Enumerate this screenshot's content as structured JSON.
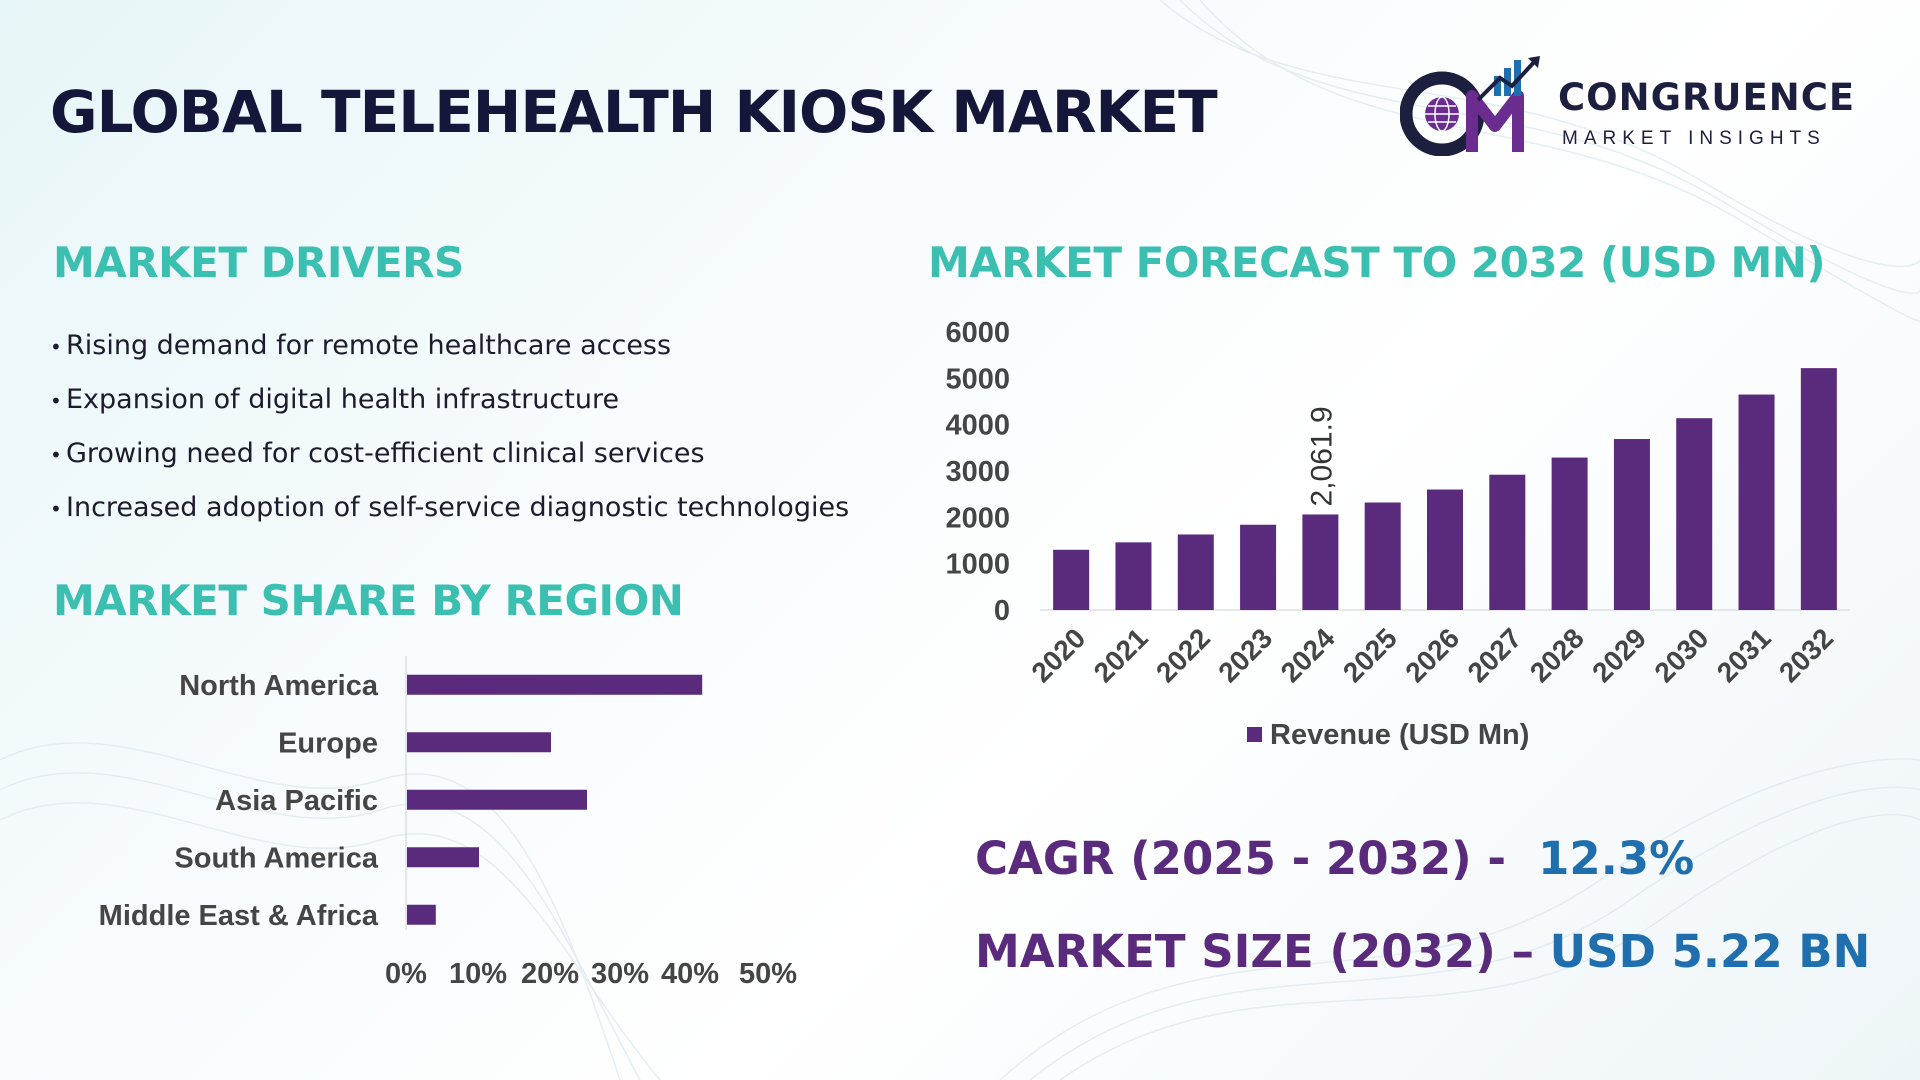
{
  "title": "GLOBAL TELEHEALTH KIOSK MARKET",
  "logo": {
    "name": "CONGRUENCE",
    "sub": "MARKET INSIGHTS",
    "icon": "globe-chart-logo-icon",
    "colors": {
      "dark": "#1d1f3f",
      "purple": "#6a2c8e",
      "blue": "#1f6fae"
    }
  },
  "sections": {
    "drivers_heading": "MARKET DRIVERS",
    "forecast_heading": "MARKET FORECAST TO 2032 (USD MN)",
    "region_heading": "MARKET SHARE BY REGION"
  },
  "drivers": [
    "Rising demand for remote healthcare access",
    "Expansion of digital health infrastructure",
    "Growing need for cost-efficient clinical services",
    "Increased adoption of self-service diagnostic technologies"
  ],
  "kpis": {
    "cagr_label": "CAGR (2025 - 2032) -",
    "cagr_value": "12.3%",
    "size_label": "MARKET SIZE (2032) –",
    "size_value": "USD 5.22 BN"
  },
  "colors": {
    "accent_teal": "#3bbfb1",
    "bar_purple": "#5a2a7c",
    "title_navy": "#15173a",
    "kpi_purple": "#5a2a7c",
    "kpi_blue": "#1f6fae",
    "axis_label_gray": "#454545"
  },
  "chart_data": [
    {
      "type": "bar",
      "orientation": "vertical",
      "categories": [
        "2020",
        "2021",
        "2022",
        "2023",
        "2024",
        "2025",
        "2026",
        "2027",
        "2028",
        "2029",
        "2030",
        "2031",
        "2032"
      ],
      "series": [
        {
          "name": "Revenue (USD Mn)",
          "values": [
            1300,
            1460,
            1630,
            1840,
            2061.9,
            2320,
            2600,
            2920,
            3290,
            3690,
            4140,
            4650,
            5220
          ]
        }
      ],
      "data_labels": [
        {
          "category": "2024",
          "text": "2,061.9"
        }
      ],
      "ylim": [
        0,
        6000
      ],
      "yticks": [
        "0",
        "1000",
        "2000",
        "3000",
        "4000",
        "5000",
        "6000"
      ],
      "grid": false,
      "legend": "bottom"
    },
    {
      "type": "bar",
      "orientation": "horizontal",
      "categories": [
        "North America",
        "Europe",
        "Asia Pacific",
        "South America",
        "Middle East & Africa"
      ],
      "values": [
        41,
        20,
        25,
        10,
        4
      ],
      "xlim": [
        0,
        50
      ],
      "xticks": [
        "0%",
        "10%",
        "20%",
        "30%",
        "40%",
        "50%"
      ],
      "grid": false
    }
  ]
}
